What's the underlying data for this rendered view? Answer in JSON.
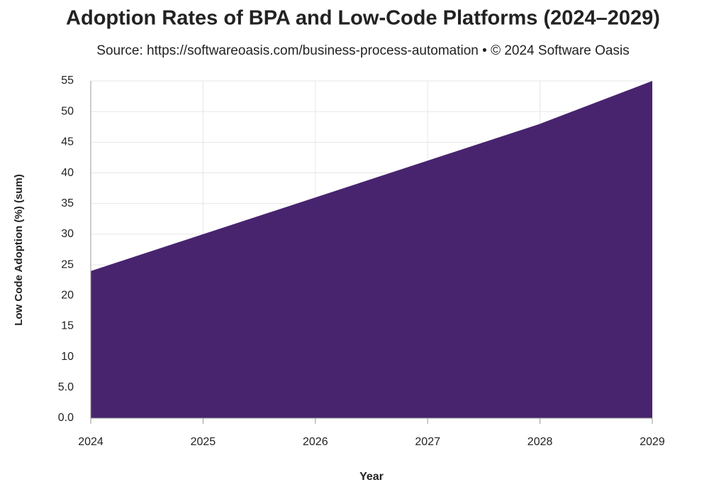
{
  "chart_data": {
    "type": "area",
    "title": "Adoption Rates of BPA and Low-Code Platforms (2024–2029)",
    "subtitle": "Source: https://softwareoasis.com/business-process-automation • © 2024 Software Oasis",
    "x_label": "Year",
    "y_label": "Low Code Adoption (%) (sum)",
    "x": [
      2024,
      2025,
      2026,
      2027,
      2028,
      2029
    ],
    "series": [
      {
        "name": "Low Code Adoption (%)",
        "color": "#48246f",
        "values": [
          24,
          30,
          36,
          42,
          48,
          55
        ]
      }
    ],
    "xlim": [
      2024,
      2029
    ],
    "xticks": [
      2024,
      2025,
      2026,
      2027,
      2028,
      2029
    ],
    "ylim": [
      0,
      55
    ],
    "yticks": [
      {
        "value": 0,
        "label": "0.0"
      },
      {
        "value": 5,
        "label": "5.0"
      },
      10,
      15,
      20,
      25,
      30,
      35,
      40,
      45,
      50,
      55
    ],
    "grid": true
  }
}
